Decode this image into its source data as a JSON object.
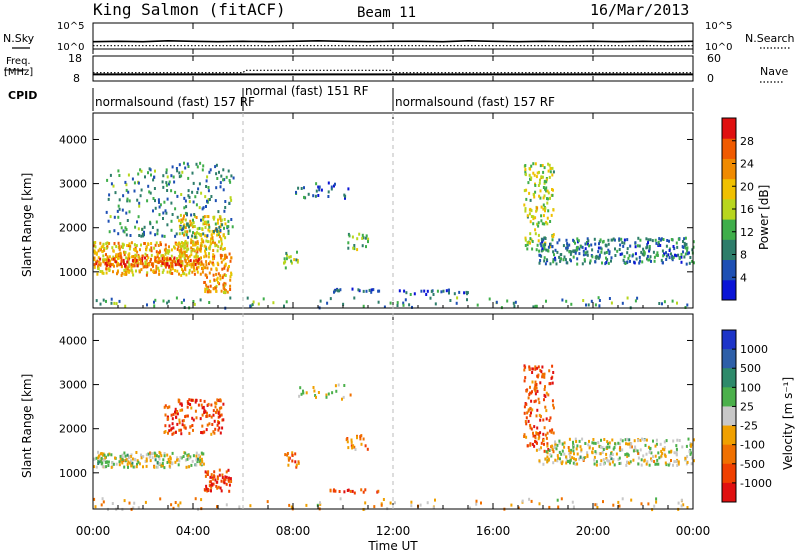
{
  "header": {
    "station": "King Salmon (fitACF)",
    "beam": "Beam 11",
    "date": "16/Mar/2013"
  },
  "chart_data": [
    {
      "type": "line",
      "panel": "noise",
      "ylabel_left": "N.Sky",
      "ylabel_right": "N.Search",
      "left_ticks": [
        "10^5",
        "10^0"
      ],
      "right_ticks": [
        "10^5",
        "10^0"
      ],
      "x_range_hours": [
        0,
        24
      ],
      "series": [
        {
          "name": "N.Sky",
          "style": "solid",
          "x": [
            0,
            1,
            2,
            3,
            4,
            5,
            6,
            7,
            8,
            9,
            10,
            11,
            12,
            13,
            14,
            15,
            16,
            17,
            18,
            19,
            20,
            21,
            22,
            23,
            24
          ],
          "y": [
            1.2,
            1.3,
            1.2,
            1.4,
            1.3,
            1.2,
            1.3,
            1.2,
            1.3,
            1.4,
            1.3,
            1.2,
            1.3,
            1.3,
            1.2,
            1.4,
            1.3,
            1.2,
            1.3,
            1.2,
            1.3,
            1.2,
            1.3,
            1.2,
            1.3
          ]
        },
        {
          "name": "N.Search",
          "style": "dotted",
          "x": [
            0,
            2,
            4,
            6,
            8,
            10,
            12,
            14,
            16,
            18,
            20,
            22,
            24
          ],
          "y": [
            0.3,
            0.3,
            0.3,
            0.3,
            0.3,
            0.3,
            0.3,
            0.3,
            0.3,
            0.3,
            0.3,
            0.3,
            0.3
          ]
        }
      ]
    },
    {
      "type": "line",
      "panel": "frequency",
      "ylabel_left_line1": "Freq.",
      "ylabel_left_line2": "[MHz]",
      "ylabel_right": "Nave",
      "left_ticks": [
        "18",
        "8"
      ],
      "right_ticks": [
        "60",
        "0"
      ],
      "x_range_hours": [
        0,
        24
      ],
      "series": [
        {
          "name": "Freq.",
          "style": "solid",
          "x": [
            0,
            2,
            4,
            6,
            8,
            10,
            12,
            14,
            16,
            18,
            20,
            22,
            24
          ],
          "y": [
            10.2,
            10.2,
            10.2,
            10.2,
            10.2,
            10.2,
            10.2,
            10.2,
            10.2,
            10.2,
            10.2,
            10.2,
            10.2
          ]
        },
        {
          "name": "Nave",
          "style": "dotted",
          "x": [
            0,
            2,
            4,
            6,
            6.1,
            8,
            10,
            11.9,
            12,
            14,
            16,
            18,
            20,
            22,
            24
          ],
          "y": [
            18,
            18,
            18,
            18,
            25,
            25,
            25,
            25,
            18,
            18,
            18,
            18,
            18,
            18,
            18
          ]
        }
      ]
    },
    {
      "type": "table",
      "panel": "cpid",
      "label": "CPID",
      "segments": [
        {
          "start_h": 0,
          "end_h": 6,
          "text": "normalsound (fast) 157 RF"
        },
        {
          "start_h": 6,
          "end_h": 12,
          "text": "normal (fast) 151 RF"
        },
        {
          "start_h": 12,
          "end_h": 24,
          "text": "normalsound (fast) 157 RF"
        }
      ]
    },
    {
      "type": "heatmap",
      "panel": "power",
      "ylabel": "Slant Range [km]",
      "ylim": [
        180,
        4600
      ],
      "yticks": [
        1000,
        2000,
        3000,
        4000
      ],
      "colorbar_label": "Power [dB]",
      "colorbar_range": [
        0,
        32
      ],
      "colorbar_ticks": [
        4,
        8,
        12,
        16,
        20,
        24,
        28
      ],
      "colorbar_colors": [
        "#0a14d6",
        "#1e50b4",
        "#2e7d6a",
        "#3fae4a",
        "#b8d61e",
        "#f0c000",
        "#f08a00",
        "#f05a00",
        "#e01010"
      ],
      "scatter_regions": [
        {
          "x0": 0,
          "x1": 4.4,
          "r0": 950,
          "r1": 1700,
          "level": 0.65,
          "density": 0.95
        },
        {
          "x0": 0,
          "x1": 4.2,
          "r0": 1150,
          "r1": 1350,
          "level": 0.85,
          "density": 0.95
        },
        {
          "x0": 3.4,
          "x1": 5.3,
          "r0": 1500,
          "r1": 2300,
          "level": 0.6,
          "density": 0.7
        },
        {
          "x0": 4.4,
          "x1": 5.5,
          "r0": 550,
          "r1": 1450,
          "level": 0.7,
          "density": 0.8
        },
        {
          "x0": 0.5,
          "x1": 5.6,
          "r0": 1800,
          "r1": 3500,
          "level": 0.3,
          "density": 0.22
        },
        {
          "x0": 8.0,
          "x1": 10.3,
          "r0": 2700,
          "r1": 3050,
          "level": 0.2,
          "density": 0.25
        },
        {
          "x0": 7.6,
          "x1": 8.2,
          "r0": 1100,
          "r1": 1500,
          "level": 0.4,
          "density": 0.5
        },
        {
          "x0": 10.1,
          "x1": 11.0,
          "r0": 1500,
          "r1": 1900,
          "level": 0.4,
          "density": 0.4
        },
        {
          "x0": 9.4,
          "x1": 11.5,
          "r0": 570,
          "r1": 650,
          "level": 0.15,
          "density": 0.8
        },
        {
          "x0": 12.0,
          "x1": 15.0,
          "r0": 520,
          "r1": 620,
          "level": 0.2,
          "density": 0.6
        },
        {
          "x0": 17.2,
          "x1": 18.4,
          "r0": 1500,
          "r1": 3500,
          "level": 0.5,
          "density": 0.45
        },
        {
          "x0": 17.8,
          "x1": 24,
          "r0": 1200,
          "r1": 1800,
          "level": 0.25,
          "density": 0.6
        },
        {
          "x0": 0,
          "x1": 24,
          "r0": 200,
          "r1": 450,
          "level": 0.3,
          "density": 0.12
        }
      ]
    },
    {
      "type": "heatmap",
      "panel": "velocity",
      "ylabel": "Slant Range [km]",
      "ylim": [
        180,
        4600
      ],
      "yticks": [
        1000,
        2000,
        3000,
        4000
      ],
      "xticks": [
        "00:00",
        "04:00",
        "08:00",
        "12:00",
        "16:00",
        "20:00",
        "00:00"
      ],
      "xlabel": "Time UT",
      "colorbar_label": "Velocity [m s⁻¹]",
      "colorbar_ticks": [
        "1000",
        "500",
        "100",
        "25",
        "-25",
        "-100",
        "-500",
        "-1000"
      ],
      "colorbar_colors": [
        "#1d34c8",
        "#2e5fa8",
        "#2e8a6a",
        "#4bb04b",
        "#c8c8c8",
        "#f0a000",
        "#f07000",
        "#f04000",
        "#e01010"
      ],
      "scatter_regions": [
        {
          "x0": 0,
          "x1": 4.4,
          "r0": 1150,
          "r1": 1500,
          "level": 0.5,
          "density": 0.95
        },
        {
          "x0": 2.8,
          "x1": 5.2,
          "r0": 1900,
          "r1": 2700,
          "level": 0.82,
          "density": 0.55
        },
        {
          "x0": 4.4,
          "x1": 5.5,
          "r0": 600,
          "r1": 1100,
          "level": 0.85,
          "density": 0.8
        },
        {
          "x0": 8.0,
          "x1": 10.3,
          "r0": 2700,
          "r1": 3050,
          "level": 0.5,
          "density": 0.2
        },
        {
          "x0": 7.6,
          "x1": 8.2,
          "r0": 1100,
          "r1": 1500,
          "level": 0.75,
          "density": 0.5
        },
        {
          "x0": 9.4,
          "x1": 11.5,
          "r0": 570,
          "r1": 650,
          "level": 0.85,
          "density": 0.8
        },
        {
          "x0": 10.1,
          "x1": 11.0,
          "r0": 1500,
          "r1": 1900,
          "level": 0.7,
          "density": 0.4
        },
        {
          "x0": 17.2,
          "x1": 18.4,
          "r0": 1500,
          "r1": 3500,
          "level": 0.8,
          "density": 0.45
        },
        {
          "x0": 17.8,
          "x1": 24,
          "r0": 1200,
          "r1": 1800,
          "level": 0.5,
          "density": 0.6
        },
        {
          "x0": 0,
          "x1": 24,
          "r0": 200,
          "r1": 450,
          "level": 0.6,
          "density": 0.12
        }
      ]
    }
  ]
}
